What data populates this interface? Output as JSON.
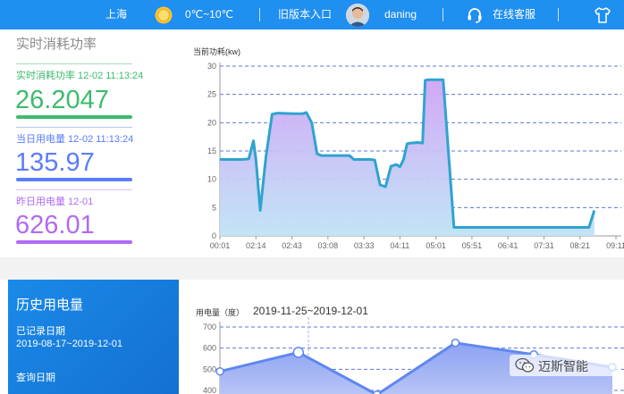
{
  "header": {
    "city": "上海",
    "weather_icon": "sun-icon",
    "temperature": "0℃~10℃",
    "old_version_link": "旧版本入口",
    "username": "daning",
    "support_label": "在线客服",
    "colors": {
      "bar": "#1f8ff0"
    }
  },
  "realtime": {
    "title": "实时消耗功率",
    "power": {
      "label": "实时消耗功率 12-02 11:13:24",
      "value": "26.2047",
      "color": "#3dbb6b"
    },
    "today": {
      "label": "当日用电量 12-02 11:13:24",
      "value": "135.97",
      "color": "#5b7cff"
    },
    "yesterday": {
      "label": "昨日用电量 12-01",
      "value": "626.01",
      "color": "#b06af5"
    }
  },
  "history": {
    "title": "历史用电量",
    "recorded_label": "已记录日期",
    "recorded_range": "2019-08-17~2019-12-01",
    "query_label": "查询日期",
    "range_display": "2019-11-25~2019-12-01"
  },
  "watermark": "迈斯智能",
  "chart_data": [
    {
      "type": "area",
      "ylabel": "当前功耗(kw)",
      "ylim": [
        0,
        30
      ],
      "yticks": [
        0,
        5,
        10,
        15,
        20,
        25,
        30
      ],
      "xticks": [
        "00:01",
        "02:14",
        "02:43",
        "03:08",
        "03:33",
        "04:11",
        "05:01",
        "05:51",
        "06:41",
        "07:31",
        "08:21",
        "09:11"
      ],
      "grid": "dashed horizontal",
      "series": [
        {
          "x": [
            0,
            0.6,
            0.8,
            0.93,
            1.0,
            1.12,
            1.28,
            1.45,
            1.6,
            2.05,
            2.3,
            2.4,
            2.55,
            2.7,
            2.82,
            3.0,
            3.25,
            3.45,
            3.6,
            3.72,
            3.85,
            4.0,
            4.18,
            4.3,
            4.45,
            4.6,
            4.75,
            4.9,
            5.0,
            5.1,
            5.2,
            5.3,
            5.5,
            5.63,
            5.7,
            5.8,
            6.0,
            6.2,
            6.5,
            7.0,
            8.0,
            9.0,
            10.0,
            10.25,
            10.4
          ],
          "y": [
            13.5,
            13.5,
            13.6,
            16.8,
            13.5,
            4.5,
            14,
            21.5,
            21.7,
            21.6,
            21.6,
            21.8,
            20,
            14.5,
            14.2,
            14.2,
            14.2,
            14.2,
            14.2,
            13.5,
            13.5,
            13.5,
            13.5,
            13.4,
            9,
            8.7,
            12.3,
            12.6,
            12.2,
            13.5,
            16.3,
            16.4,
            16.5,
            16.4,
            27.5,
            27.6,
            27.6,
            27.6,
            1.5,
            1.5,
            1.5,
            1.5,
            1.5,
            1.5,
            4.5
          ]
        }
      ]
    },
    {
      "type": "area",
      "ylabel": "用电量（度）",
      "ylim": [
        400,
        700
      ],
      "yticks": [
        400,
        500,
        600,
        700
      ],
      "grid": "dashed horizontal",
      "series": [
        {
          "x": [
            0,
            1,
            2,
            3,
            4,
            5
          ],
          "y": [
            490,
            580,
            380,
            625,
            570,
            510
          ]
        }
      ]
    }
  ]
}
